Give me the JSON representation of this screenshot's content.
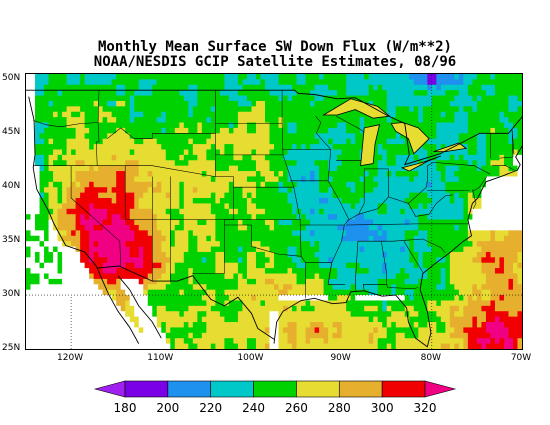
{
  "title": {
    "line1": "Monthly Mean Surface SW Down Flux (W/m**2)",
    "line2": "NOAA/NESDIS GCIP Satellite Estimates, 08/96"
  },
  "map": {
    "lat_labels": [
      "50N",
      "45N",
      "40N",
      "35N",
      "30N",
      "25N"
    ],
    "lat_values": [
      50,
      45,
      40,
      35,
      30,
      25
    ],
    "lon_labels": [
      "120W",
      "110W",
      "100W",
      "90W",
      "80W",
      "70W"
    ],
    "lon_values": [
      -120,
      -110,
      -100,
      -90,
      -80,
      -70
    ],
    "lat_range": [
      25,
      50.5
    ],
    "lon_range": [
      -125,
      -70
    ]
  },
  "legend": {
    "labels": [
      "180",
      "200",
      "220",
      "240",
      "260",
      "280",
      "300",
      "320"
    ],
    "colors": [
      "#a020f0",
      "#7a00e6",
      "#1e90ee",
      "#00c8c8",
      "#00d200",
      "#e6dc32",
      "#e6af2d",
      "#f00000",
      "#f00082"
    ],
    "ocean_color": "#ffffff"
  }
}
